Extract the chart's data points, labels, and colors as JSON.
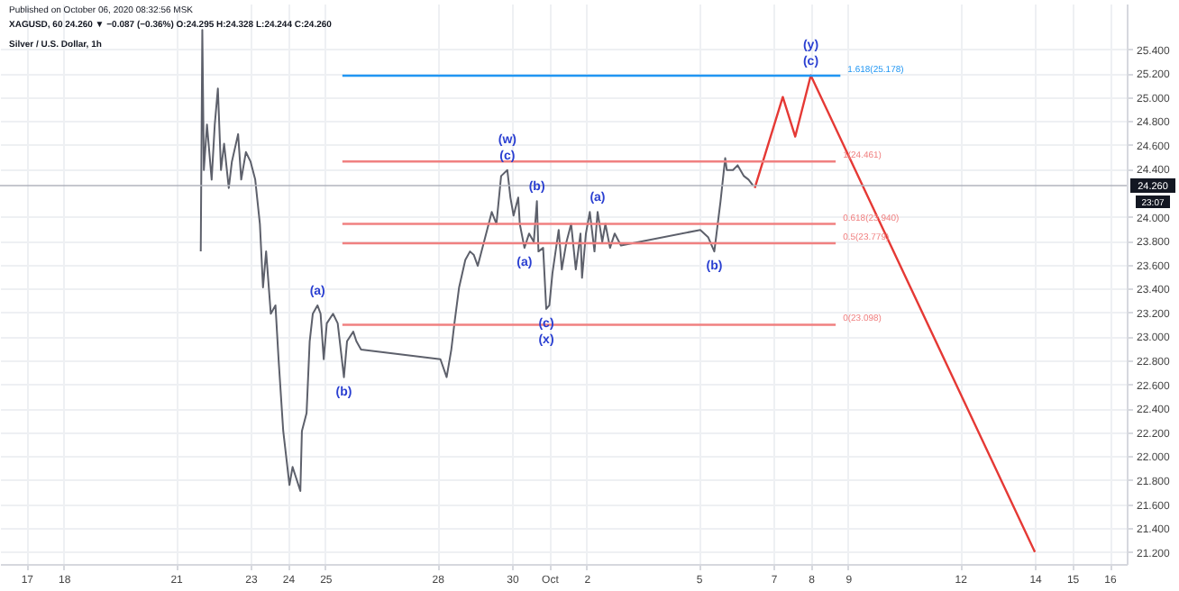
{
  "chart_data": {
    "type": "line",
    "title": "Silver / U.S. Dollar, 1h",
    "subtitle": "XAGUSD, 60 24.260 ▼ −0.087 (−0.36%) O:24.295 H:24.328 L:24.244 C:24.260",
    "annotations": [
      "Published on October 06, 2020 08:32:56 MSK",
      "23:07",
      {
        "text": "(w)",
        "x": "2020-09-29T21:00",
        "y": 24.39
      },
      {
        "text": "(c)",
        "x": "2020-09-29T21:00",
        "y": 24.39
      },
      {
        "text": "(b)",
        "x": "2020-09-30T16:00",
        "y": 24.13
      },
      {
        "text": "(a)",
        "x": "2020-09-30T08:00",
        "y": 23.74
      },
      {
        "text": "(c)",
        "x": "2020-09-30T22:00",
        "y": 23.23
      },
      {
        "text": "(x)",
        "x": "2020-09-30T22:00",
        "y": 23.23
      },
      {
        "text": "(a)",
        "x": "2020-10-02T07:00",
        "y": 24.04
      },
      {
        "text": "(b)",
        "x": "2020-10-05T10:00",
        "y": 23.71
      },
      {
        "text": "(a)",
        "x": "2020-09-24T19:00",
        "y": 23.26
      },
      {
        "text": "(b)",
        "x": "2020-09-25T12:00",
        "y": 22.66
      },
      {
        "text": "(y)",
        "x": "2020-10-08T00:00",
        "y": 25.18
      },
      {
        "text": "(c)",
        "x": "2020-10-08T00:00",
        "y": 25.18
      }
    ],
    "xlim": [
      "2020-09-16T07:00",
      "2020-10-16T11:00"
    ],
    "xticks": [
      {
        "value": "2020-09-17",
        "label": "17"
      },
      {
        "value": "2020-09-18",
        "label": "18"
      },
      {
        "value": "2020-09-21",
        "label": "21"
      },
      {
        "value": "2020-09-23",
        "label": "23"
      },
      {
        "value": "2020-09-24",
        "label": "24"
      },
      {
        "value": "2020-09-25",
        "label": "25"
      },
      {
        "value": "2020-09-28",
        "label": "28"
      },
      {
        "value": "2020-09-30",
        "label": "30"
      },
      {
        "value": "2020-10-01",
        "label": "Oct"
      },
      {
        "value": "2020-10-02",
        "label": "2"
      },
      {
        "value": "2020-10-05",
        "label": "5"
      },
      {
        "value": "2020-10-07",
        "label": "7"
      },
      {
        "value": "2020-10-08",
        "label": "8"
      },
      {
        "value": "2020-10-09",
        "label": "9"
      },
      {
        "value": "2020-10-12",
        "label": "12"
      },
      {
        "value": "2020-10-14",
        "label": "14"
      },
      {
        "value": "2020-10-15",
        "label": "15"
      },
      {
        "value": "2020-10-16",
        "label": "16"
      }
    ],
    "ylim": [
      21.1,
      25.78
    ],
    "yticks": [
      {
        "value": 21.2,
        "label": "21.200"
      },
      {
        "value": 21.4,
        "label": "21.400"
      },
      {
        "value": 21.6,
        "label": "21.600"
      },
      {
        "value": 21.8,
        "label": "21.800"
      },
      {
        "value": 22,
        "label": "22.000"
      },
      {
        "value": 22.2,
        "label": "22.200"
      },
      {
        "value": 22.4,
        "label": "22.400"
      },
      {
        "value": 22.6,
        "label": "22.600"
      },
      {
        "value": 22.8,
        "label": "22.800"
      },
      {
        "value": 23,
        "label": "23.000"
      },
      {
        "value": 23.2,
        "label": "23.200"
      },
      {
        "value": 23.4,
        "label": "23.400"
      },
      {
        "value": 23.6,
        "label": "23.600"
      },
      {
        "value": 23.8,
        "label": "23.800"
      },
      {
        "value": 24,
        "label": "24.000"
      },
      {
        "value": 24.4,
        "label": "24.400"
      },
      {
        "value": 24.6,
        "label": "24.600"
      },
      {
        "value": 24.8,
        "label": "24.800"
      },
      {
        "value": 25,
        "label": "25.000"
      },
      {
        "value": 25.2,
        "label": "25.200"
      },
      {
        "value": 25.4,
        "label": "25.400"
      }
    ],
    "grid": true,
    "ref_lines": [
      {
        "axis": "y",
        "value": 24.26,
        "label": "24.260",
        "color": "#b2b5be"
      }
    ],
    "series": [
      {
        "color": "#5d606b",
        "x": [
          "2020-09-21T16:00",
          "2020-09-21T17:00",
          "2020-09-21T18:00",
          "2020-09-21T20:00",
          "2020-09-21T23:00",
          "2020-09-22T01:00",
          "2020-09-22T03:00",
          "2020-09-22T05:00",
          "2020-09-22T07:00",
          "2020-09-22T10:00",
          "2020-09-22T12:00",
          "2020-09-22T16:00",
          "2020-09-22T18:00",
          "2020-09-22T21:00",
          "2020-09-23T00:00",
          "2020-09-23T03:00",
          "2020-09-23T06:00",
          "2020-09-23T08:00",
          "2020-09-23T10:00",
          "2020-09-23T13:00",
          "2020-09-23T16:00",
          "2020-09-23T18:00",
          "2020-09-23T21:00",
          "2020-09-24T01:00",
          "2020-09-24T03:00",
          "2020-09-24T05:00",
          "2020-09-24T08:00",
          "2020-09-24T09:00",
          "2020-09-24T12:00",
          "2020-09-24T14:00",
          "2020-09-24T16:00",
          "2020-09-24T19:00",
          "2020-09-24T21:00",
          "2020-09-24T23:00",
          "2020-09-25T01:00",
          "2020-09-25T05:00",
          "2020-09-25T08:00",
          "2020-09-25T12:00",
          "2020-09-25T14:00",
          "2020-09-25T18:00",
          "2020-09-25T20:00",
          "2020-09-25T23:00",
          "2020-09-28T02:00",
          "2020-09-28T06:00",
          "2020-09-28T09:00",
          "2020-09-28T11:00",
          "2020-09-28T14:00",
          "2020-09-28T18:00",
          "2020-09-28T21:00",
          "2020-09-28T23:30",
          "2020-09-29T02:00",
          "2020-09-29T06:00",
          "2020-09-29T08:00",
          "2020-09-29T11:00",
          "2020-09-29T14:00",
          "2020-09-29T17:00",
          "2020-09-29T21:00",
          "2020-09-29T23:00",
          "2020-09-30T01:00",
          "2020-09-30T04:00",
          "2020-09-30T05:00",
          "2020-09-30T08:00",
          "2020-09-30T11:00",
          "2020-09-30T14:00",
          "2020-09-30T16:00",
          "2020-09-30T17:00",
          "2020-09-30T20:00",
          "2020-09-30T22:00",
          "2020-10-01T00:00",
          "2020-10-01T02:00",
          "2020-10-01T04:00",
          "2020-10-01T06:00",
          "2020-10-01T08:00",
          "2020-10-01T11:00",
          "2020-10-01T14:00",
          "2020-10-01T17:00",
          "2020-10-01T20:00",
          "2020-10-01T21:00",
          "2020-10-01T23:30",
          "2020-10-02T02:00",
          "2020-10-02T05:00",
          "2020-10-02T07:00",
          "2020-10-02T10:00",
          "2020-10-02T12:00",
          "2020-10-02T15:00",
          "2020-10-02T18:00",
          "2020-10-02T22:00",
          "2020-10-05T01:00",
          "2020-10-05T06:00",
          "2020-10-05T10:00",
          "2020-10-05T14:00",
          "2020-10-05T17:00",
          "2020-10-05T18:00",
          "2020-10-05T22:00",
          "2020-10-06T01:00",
          "2020-10-06T05:00",
          "2020-10-06T08:00",
          "2020-10-06T11:00"
        ],
        "values": [
          23.71,
          25.56,
          24.39,
          24.77,
          24.31,
          24.77,
          25.07,
          24.39,
          24.61,
          24.24,
          24.46,
          24.69,
          24.31,
          24.54,
          24.46,
          24.31,
          23.94,
          23.41,
          23.71,
          23.19,
          23.26,
          22.81,
          22.21,
          21.76,
          21.91,
          21.83,
          21.71,
          22.21,
          22.36,
          22.96,
          23.19,
          23.26,
          23.19,
          22.81,
          23.11,
          23.19,
          23.11,
          22.66,
          22.96,
          23.04,
          22.96,
          22.89,
          22.81,
          22.66,
          22.89,
          23.11,
          23.41,
          23.64,
          23.71,
          23.68,
          23.59,
          23.79,
          23.89,
          24.04,
          23.94,
          24.34,
          24.39,
          24.16,
          24.01,
          24.16,
          23.94,
          23.74,
          23.86,
          23.79,
          24.13,
          23.71,
          23.74,
          23.23,
          23.26,
          23.53,
          23.71,
          23.89,
          23.56,
          23.79,
          23.94,
          23.56,
          23.86,
          23.49,
          23.86,
          24.04,
          23.71,
          24.04,
          23.79,
          23.94,
          23.74,
          23.86,
          23.76,
          23.89,
          23.83,
          23.71,
          24.13,
          24.49,
          24.39,
          24.39,
          24.43,
          24.34,
          24.31,
          24.26
        ]
      },
      {
        "color": "#e53935",
        "x": [
          "2020-10-06T12:00",
          "2020-10-07T06:00",
          "2020-10-07T14:00",
          "2020-10-08T00:00",
          "2020-10-14T00:00"
        ],
        "values": [
          24.24,
          25.0,
          24.67,
          25.18,
          21.2
        ]
      },
      {
        "name": "1.618(25.178)",
        "color": "#2196f3",
        "x": [
          "2020-09-25T11:00",
          "2020-10-08T19:00"
        ],
        "values": [
          25.178,
          25.178
        ]
      },
      {
        "name": "1(24.461)",
        "color": "#f08080",
        "x": [
          "2020-09-25T11:00",
          "2020-10-08T16:00"
        ],
        "values": [
          24.461,
          24.461
        ]
      },
      {
        "name": "0.618(23.940)",
        "color": "#f08080",
        "x": [
          "2020-09-25T11:00",
          "2020-10-08T16:00"
        ],
        "values": [
          23.94,
          23.94
        ]
      },
      {
        "name": "0.5(23.779)",
        "color": "#f08080",
        "x": [
          "2020-09-25T11:00",
          "2020-10-08T16:00"
        ],
        "values": [
          23.779,
          23.779
        ]
      },
      {
        "name": "0(23.098)",
        "color": "#f08080",
        "x": [
          "2020-09-25T11:00",
          "2020-10-08T16:00"
        ],
        "values": [
          23.098,
          23.098
        ]
      }
    ]
  }
}
